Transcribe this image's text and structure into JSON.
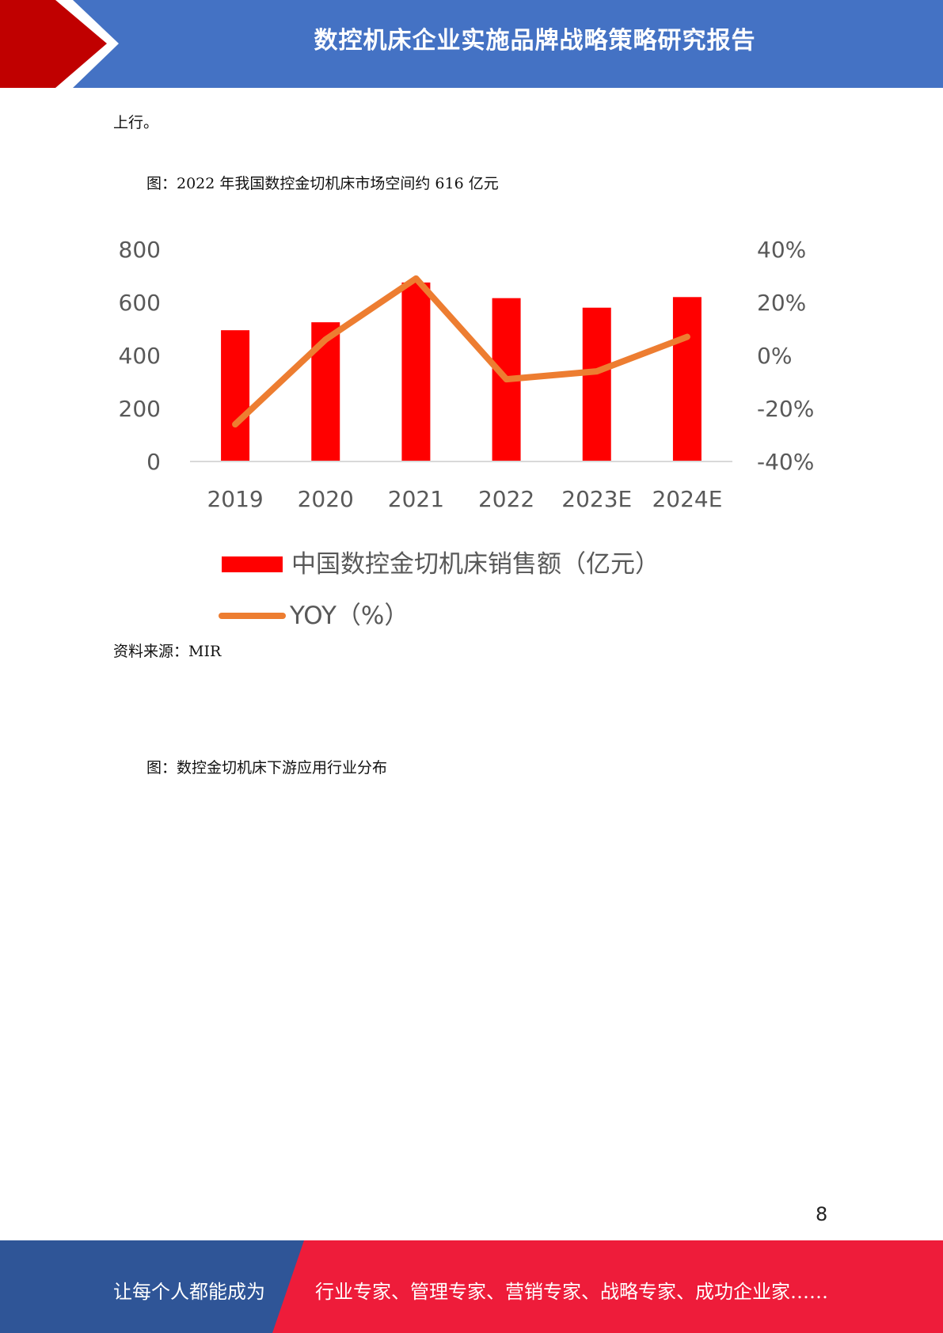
{
  "header": {
    "title": "数控机床企业实施品牌战略策略研究报告"
  },
  "body": {
    "line1": "上行。",
    "figure1_caption": "图：2022 年我国数控金切机床市场空间约 616 亿元",
    "source": "资料来源：MIR",
    "figure2_caption": "图：数控金切机床下游应用行业分布"
  },
  "chart_data": {
    "type": "bar",
    "categories": [
      "2019",
      "2020",
      "2021",
      "2022",
      "2023E",
      "2024E"
    ],
    "series": [
      {
        "name": "中国数控金切机床销售额（亿元）",
        "type": "bar",
        "axis": "left",
        "color": "#ff0000",
        "values": [
          495,
          525,
          675,
          616,
          580,
          620
        ]
      },
      {
        "name": "YOY（%）",
        "type": "line",
        "axis": "right",
        "color": "#ed7d31",
        "values": [
          -26,
          6,
          29,
          -9,
          -6,
          7
        ]
      }
    ],
    "left_axis": {
      "ylim": [
        0,
        800
      ],
      "ticks": [
        "800",
        "600",
        "400",
        "200",
        "0"
      ]
    },
    "right_axis": {
      "ylim": [
        -40,
        40
      ],
      "ticks": [
        "40%",
        "20%",
        "0%",
        "-20%",
        "-40%"
      ]
    },
    "legend_position": "bottom"
  },
  "page_number": "8",
  "footer": {
    "left_text": "让每个人都能成为",
    "right_text": "行业专家、管理专家、营销专家、战略专家、成功企业家……",
    "colors": {
      "left": "#2f5597",
      "right": "#ee1c3a"
    }
  },
  "colors": {
    "header": "#4472c4",
    "header_accent": "#c00000"
  }
}
